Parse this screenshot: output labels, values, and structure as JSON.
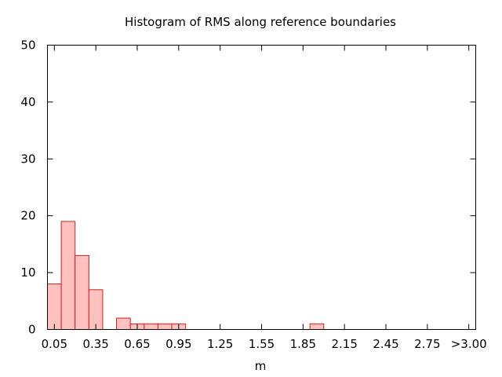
{
  "chart_data": {
    "type": "bar",
    "title": "Histogram of RMS along reference boundaries",
    "xlabel": "m",
    "ylabel": "",
    "ylim": [
      0,
      50
    ],
    "y_ticks": [
      "0",
      "10",
      "20",
      "30",
      "40",
      "50"
    ],
    "y_tick_values": [
      0,
      10,
      20,
      30,
      40,
      50
    ],
    "x_ticks": [
      "0.05",
      "0.35",
      "0.65",
      "0.95",
      "1.25",
      "1.55",
      "1.85",
      "2.15",
      "2.45",
      "2.75",
      ">3.00"
    ],
    "x_tick_values": [
      0.05,
      0.35,
      0.65,
      0.95,
      1.25,
      1.55,
      1.85,
      2.15,
      2.45,
      2.75,
      3.05
    ],
    "xlim": [
      0.0,
      3.1
    ],
    "bin_width": 0.1,
    "categories": [
      "0.05",
      "0.15",
      "0.25",
      "0.35",
      "0.45",
      "0.55",
      "0.65",
      "0.75",
      "0.85",
      "0.95",
      "1.05",
      "1.15",
      "1.25",
      "1.35",
      "1.45",
      "1.55",
      "1.65",
      "1.75",
      "1.85",
      "1.95",
      "2.05",
      "2.15",
      "2.25",
      "2.35",
      "2.45",
      "2.55",
      "2.65",
      "2.75",
      "2.85",
      "2.95",
      "3.05"
    ],
    "values": [
      8,
      19,
      13,
      7,
      0,
      2,
      1,
      1,
      1,
      1,
      0,
      0,
      0,
      0,
      0,
      0,
      0,
      0,
      0,
      1,
      0,
      0,
      0,
      0,
      0,
      0,
      0,
      0,
      0,
      0,
      0
    ],
    "grid": false,
    "colors": {
      "bar_fill": "#ffc0c0",
      "bar_stroke": "#cc2222",
      "axis": "#000000"
    }
  }
}
